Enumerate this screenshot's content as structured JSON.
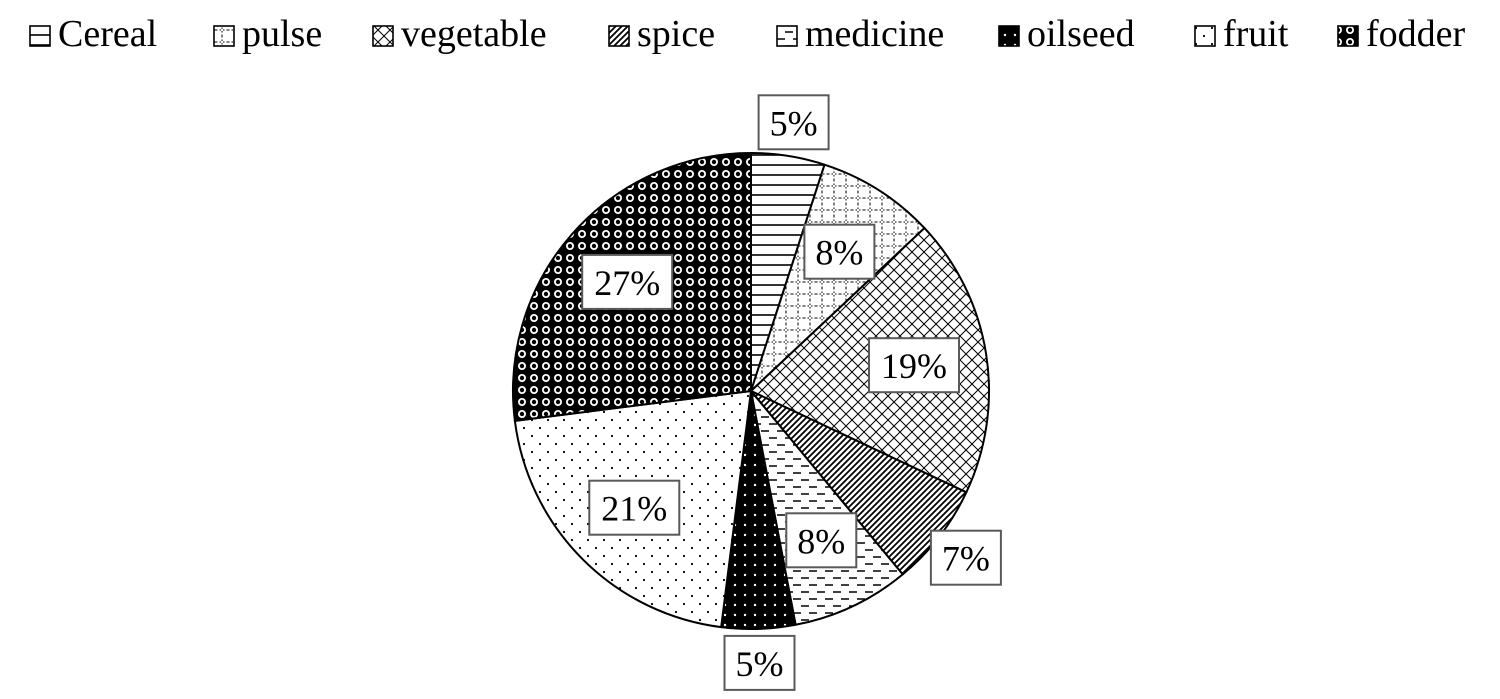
{
  "chart_data": {
    "type": "pie",
    "title": "",
    "legend": {
      "placement": "top",
      "entries": [
        "Cereal",
        "pulse",
        "vegetable",
        "spice",
        "medicine",
        "oilseed",
        "fruit",
        "fodder"
      ]
    },
    "slices": [
      {
        "name": "Cereal",
        "value": 5,
        "label": "5%",
        "pattern": "horizontal-lines"
      },
      {
        "name": "pulse",
        "value": 8,
        "label": "8%",
        "pattern": "dotted-grid"
      },
      {
        "name": "vegetable",
        "value": 19,
        "label": "19%",
        "pattern": "diagonal-crosshatch"
      },
      {
        "name": "spice",
        "value": 7,
        "label": "7%",
        "pattern": "diagonal-lines"
      },
      {
        "name": "medicine",
        "value": 8,
        "label": "8%",
        "pattern": "dashed-lines"
      },
      {
        "name": "oilseed",
        "value": 5,
        "label": "5%",
        "pattern": "solid-black-dots"
      },
      {
        "name": "fruit",
        "value": 21,
        "label": "21%",
        "pattern": "sparse-dots"
      },
      {
        "name": "fodder",
        "value": 27,
        "label": "27%",
        "pattern": "checkered-circles"
      }
    ],
    "start_angle": "12 o'clock",
    "direction": "clockwise",
    "colors": {
      "stroke": "#000000",
      "background": "#ffffff",
      "label_border": "#595959"
    }
  }
}
